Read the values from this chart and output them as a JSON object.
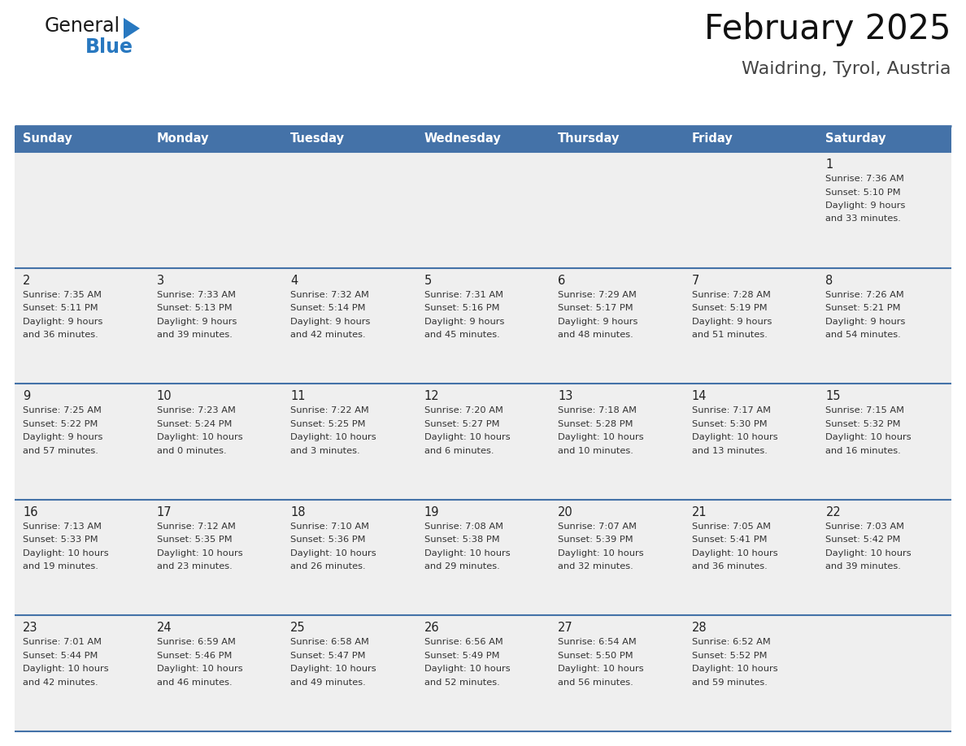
{
  "title": "February 2025",
  "subtitle": "Waidring, Tyrol, Austria",
  "days_of_week": [
    "Sunday",
    "Monday",
    "Tuesday",
    "Wednesday",
    "Thursday",
    "Friday",
    "Saturday"
  ],
  "header_bg": "#4472a8",
  "header_text": "#ffffff",
  "row_bg": "#efefef",
  "separator_color": "#4472a8",
  "cell_text_color": "#333333",
  "day_num_color": "#222222",
  "calendar_data": [
    [
      null,
      null,
      null,
      null,
      null,
      null,
      {
        "day": 1,
        "sunrise": "7:36 AM",
        "sunset": "5:10 PM",
        "daylight": "9 hours",
        "daylight2": "and 33 minutes."
      }
    ],
    [
      {
        "day": 2,
        "sunrise": "7:35 AM",
        "sunset": "5:11 PM",
        "daylight": "9 hours",
        "daylight2": "and 36 minutes."
      },
      {
        "day": 3,
        "sunrise": "7:33 AM",
        "sunset": "5:13 PM",
        "daylight": "9 hours",
        "daylight2": "and 39 minutes."
      },
      {
        "day": 4,
        "sunrise": "7:32 AM",
        "sunset": "5:14 PM",
        "daylight": "9 hours",
        "daylight2": "and 42 minutes."
      },
      {
        "day": 5,
        "sunrise": "7:31 AM",
        "sunset": "5:16 PM",
        "daylight": "9 hours",
        "daylight2": "and 45 minutes."
      },
      {
        "day": 6,
        "sunrise": "7:29 AM",
        "sunset": "5:17 PM",
        "daylight": "9 hours",
        "daylight2": "and 48 minutes."
      },
      {
        "day": 7,
        "sunrise": "7:28 AM",
        "sunset": "5:19 PM",
        "daylight": "9 hours",
        "daylight2": "and 51 minutes."
      },
      {
        "day": 8,
        "sunrise": "7:26 AM",
        "sunset": "5:21 PM",
        "daylight": "9 hours",
        "daylight2": "and 54 minutes."
      }
    ],
    [
      {
        "day": 9,
        "sunrise": "7:25 AM",
        "sunset": "5:22 PM",
        "daylight": "9 hours",
        "daylight2": "and 57 minutes."
      },
      {
        "day": 10,
        "sunrise": "7:23 AM",
        "sunset": "5:24 PM",
        "daylight": "10 hours",
        "daylight2": "and 0 minutes."
      },
      {
        "day": 11,
        "sunrise": "7:22 AM",
        "sunset": "5:25 PM",
        "daylight": "10 hours",
        "daylight2": "and 3 minutes."
      },
      {
        "day": 12,
        "sunrise": "7:20 AM",
        "sunset": "5:27 PM",
        "daylight": "10 hours",
        "daylight2": "and 6 minutes."
      },
      {
        "day": 13,
        "sunrise": "7:18 AM",
        "sunset": "5:28 PM",
        "daylight": "10 hours",
        "daylight2": "and 10 minutes."
      },
      {
        "day": 14,
        "sunrise": "7:17 AM",
        "sunset": "5:30 PM",
        "daylight": "10 hours",
        "daylight2": "and 13 minutes."
      },
      {
        "day": 15,
        "sunrise": "7:15 AM",
        "sunset": "5:32 PM",
        "daylight": "10 hours",
        "daylight2": "and 16 minutes."
      }
    ],
    [
      {
        "day": 16,
        "sunrise": "7:13 AM",
        "sunset": "5:33 PM",
        "daylight": "10 hours",
        "daylight2": "and 19 minutes."
      },
      {
        "day": 17,
        "sunrise": "7:12 AM",
        "sunset": "5:35 PM",
        "daylight": "10 hours",
        "daylight2": "and 23 minutes."
      },
      {
        "day": 18,
        "sunrise": "7:10 AM",
        "sunset": "5:36 PM",
        "daylight": "10 hours",
        "daylight2": "and 26 minutes."
      },
      {
        "day": 19,
        "sunrise": "7:08 AM",
        "sunset": "5:38 PM",
        "daylight": "10 hours",
        "daylight2": "and 29 minutes."
      },
      {
        "day": 20,
        "sunrise": "7:07 AM",
        "sunset": "5:39 PM",
        "daylight": "10 hours",
        "daylight2": "and 32 minutes."
      },
      {
        "day": 21,
        "sunrise": "7:05 AM",
        "sunset": "5:41 PM",
        "daylight": "10 hours",
        "daylight2": "and 36 minutes."
      },
      {
        "day": 22,
        "sunrise": "7:03 AM",
        "sunset": "5:42 PM",
        "daylight": "10 hours",
        "daylight2": "and 39 minutes."
      }
    ],
    [
      {
        "day": 23,
        "sunrise": "7:01 AM",
        "sunset": "5:44 PM",
        "daylight": "10 hours",
        "daylight2": "and 42 minutes."
      },
      {
        "day": 24,
        "sunrise": "6:59 AM",
        "sunset": "5:46 PM",
        "daylight": "10 hours",
        "daylight2": "and 46 minutes."
      },
      {
        "day": 25,
        "sunrise": "6:58 AM",
        "sunset": "5:47 PM",
        "daylight": "10 hours",
        "daylight2": "and 49 minutes."
      },
      {
        "day": 26,
        "sunrise": "6:56 AM",
        "sunset": "5:49 PM",
        "daylight": "10 hours",
        "daylight2": "and 52 minutes."
      },
      {
        "day": 27,
        "sunrise": "6:54 AM",
        "sunset": "5:50 PM",
        "daylight": "10 hours",
        "daylight2": "and 56 minutes."
      },
      {
        "day": 28,
        "sunrise": "6:52 AM",
        "sunset": "5:52 PM",
        "daylight": "10 hours",
        "daylight2": "and 59 minutes."
      },
      null
    ]
  ],
  "logo_text_general": "General",
  "logo_text_blue": "Blue",
  "logo_color_general": "#1a1a1a",
  "logo_color_blue": "#2878c0",
  "logo_triangle_color": "#2878c0"
}
